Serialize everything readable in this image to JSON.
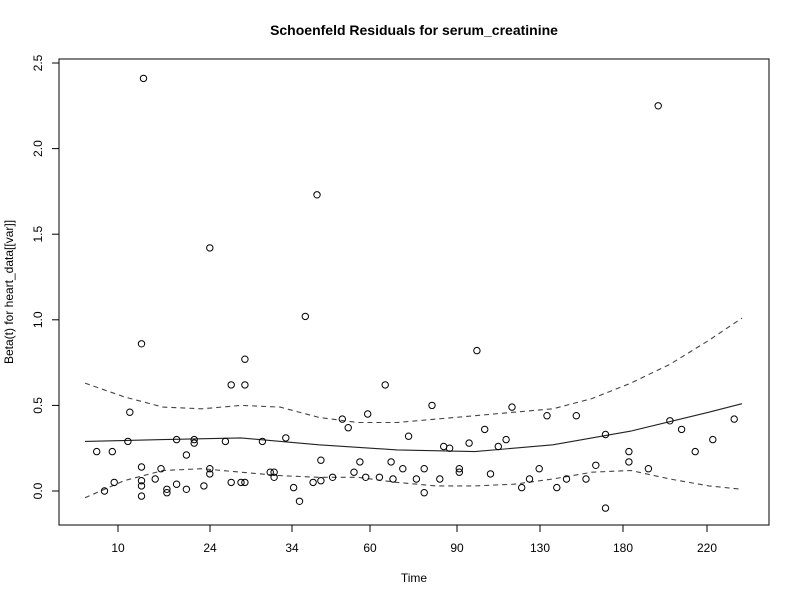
{
  "chart_data": {
    "type": "scatter",
    "title": "Schoenfeld Residuals for serum_creatinine",
    "xlabel": "Time",
    "ylabel": "Beta(t) for heart_data[[var]]",
    "x_scale": "transformed (rank/KM)",
    "x_ticks": [
      "10",
      "24",
      "34",
      "60",
      "90",
      "130",
      "180",
      "220"
    ],
    "y_ticks": [
      "0.0",
      "0.5",
      "1.0",
      "1.5",
      "2.0",
      "2.5"
    ],
    "ylim": [
      -0.2,
      2.55
    ],
    "grid": false,
    "colors": {
      "points": "#000000",
      "lines": "#222222",
      "dashed": "#444444"
    },
    "points": [
      [
        0.6,
        0.23
      ],
      [
        1.0,
        0.0
      ],
      [
        1.4,
        0.23
      ],
      [
        1.5,
        0.05
      ],
      [
        2.2,
        0.29
      ],
      [
        2.3,
        0.46
      ],
      [
        2.9,
        0.03
      ],
      [
        2.9,
        0.06
      ],
      [
        2.9,
        0.14
      ],
      [
        2.9,
        0.86
      ],
      [
        2.9,
        -0.03
      ],
      [
        3.0,
        2.41
      ],
      [
        3.6,
        0.07
      ],
      [
        3.9,
        0.13
      ],
      [
        4.2,
        0.01
      ],
      [
        4.2,
        -0.01
      ],
      [
        4.7,
        0.3
      ],
      [
        4.7,
        0.04
      ],
      [
        5.2,
        0.21
      ],
      [
        5.2,
        0.01
      ],
      [
        5.6,
        0.3
      ],
      [
        5.6,
        0.28
      ],
      [
        6.1,
        0.03
      ],
      [
        6.4,
        0.1
      ],
      [
        6.4,
        0.13
      ],
      [
        6.4,
        1.42
      ],
      [
        7.2,
        0.29
      ],
      [
        7.5,
        0.62
      ],
      [
        7.5,
        0.05
      ],
      [
        8.0,
        0.05
      ],
      [
        8.2,
        0.05
      ],
      [
        8.2,
        0.62
      ],
      [
        8.2,
        0.77
      ],
      [
        9.1,
        0.29
      ],
      [
        9.5,
        0.11
      ],
      [
        9.7,
        0.08
      ],
      [
        9.7,
        0.11
      ],
      [
        10.3,
        0.31
      ],
      [
        10.7,
        0.02
      ],
      [
        11.0,
        -0.06
      ],
      [
        11.3,
        1.02
      ],
      [
        11.7,
        0.05
      ],
      [
        11.9,
        1.73
      ],
      [
        12.1,
        0.06
      ],
      [
        12.1,
        0.18
      ],
      [
        12.7,
        0.08
      ],
      [
        13.2,
        0.42
      ],
      [
        13.5,
        0.37
      ],
      [
        13.8,
        0.11
      ],
      [
        14.1,
        0.17
      ],
      [
        14.4,
        0.08
      ],
      [
        14.5,
        0.45
      ],
      [
        15.1,
        0.08
      ],
      [
        15.4,
        0.62
      ],
      [
        15.7,
        0.17
      ],
      [
        15.8,
        0.07
      ],
      [
        16.3,
        0.13
      ],
      [
        16.6,
        0.32
      ],
      [
        17.0,
        0.07
      ],
      [
        17.4,
        0.13
      ],
      [
        17.4,
        -0.01
      ],
      [
        17.8,
        0.5
      ],
      [
        18.2,
        0.07
      ],
      [
        18.4,
        0.26
      ],
      [
        18.7,
        0.25
      ],
      [
        19.2,
        0.13
      ],
      [
        19.2,
        0.11
      ],
      [
        19.7,
        0.28
      ],
      [
        20.1,
        0.82
      ],
      [
        20.5,
        0.36
      ],
      [
        20.8,
        0.1
      ],
      [
        21.2,
        0.26
      ],
      [
        21.6,
        0.3
      ],
      [
        21.9,
        0.49
      ],
      [
        22.4,
        0.02
      ],
      [
        22.8,
        0.07
      ],
      [
        23.3,
        0.13
      ],
      [
        23.7,
        0.44
      ],
      [
        24.2,
        0.02
      ],
      [
        24.7,
        0.07
      ],
      [
        25.2,
        0.44
      ],
      [
        25.7,
        0.07
      ],
      [
        26.2,
        0.15
      ],
      [
        26.7,
        0.33
      ],
      [
        26.7,
        -0.1
      ],
      [
        27.9,
        0.23
      ],
      [
        27.9,
        0.17
      ],
      [
        28.9,
        0.13
      ],
      [
        29.4,
        2.25
      ],
      [
        30.0,
        0.41
      ],
      [
        30.6,
        0.36
      ],
      [
        31.3,
        0.23
      ],
      [
        32.2,
        0.3
      ],
      [
        33.3,
        0.42
      ]
    ],
    "fit_line": [
      [
        0.0,
        0.29
      ],
      [
        4.0,
        0.3
      ],
      [
        8.0,
        0.31
      ],
      [
        12.0,
        0.27
      ],
      [
        16.0,
        0.24
      ],
      [
        20.0,
        0.23
      ],
      [
        24.0,
        0.27
      ],
      [
        28.0,
        0.35
      ],
      [
        32.0,
        0.46
      ],
      [
        33.7,
        0.51
      ]
    ],
    "upper_band": [
      [
        0.0,
        0.63
      ],
      [
        2.0,
        0.55
      ],
      [
        4.0,
        0.49
      ],
      [
        6.0,
        0.48
      ],
      [
        8.0,
        0.5
      ],
      [
        10.0,
        0.49
      ],
      [
        12.0,
        0.43
      ],
      [
        14.0,
        0.4
      ],
      [
        16.0,
        0.4
      ],
      [
        18.0,
        0.42
      ],
      [
        20.0,
        0.44
      ],
      [
        22.0,
        0.46
      ],
      [
        24.0,
        0.48
      ],
      [
        26.0,
        0.54
      ],
      [
        28.0,
        0.63
      ],
      [
        30.0,
        0.74
      ],
      [
        32.0,
        0.88
      ],
      [
        33.7,
        1.01
      ]
    ],
    "lower_band": [
      [
        0.0,
        -0.04
      ],
      [
        2.0,
        0.06
      ],
      [
        4.0,
        0.12
      ],
      [
        6.0,
        0.13
      ],
      [
        8.0,
        0.11
      ],
      [
        10.0,
        0.09
      ],
      [
        12.0,
        0.08
      ],
      [
        14.0,
        0.08
      ],
      [
        16.0,
        0.05
      ],
      [
        18.0,
        0.03
      ],
      [
        20.0,
        0.03
      ],
      [
        22.0,
        0.04
      ],
      [
        24.0,
        0.07
      ],
      [
        26.0,
        0.11
      ],
      [
        28.0,
        0.12
      ],
      [
        30.0,
        0.07
      ],
      [
        32.0,
        0.03
      ],
      [
        33.7,
        0.01
      ]
    ]
  }
}
